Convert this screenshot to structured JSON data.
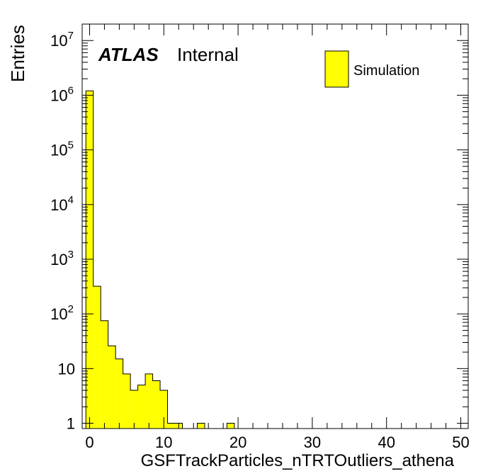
{
  "chart_data": {
    "type": "bar",
    "title": "",
    "xlabel": "GSFTrackParticles_nTRTOutliers_athena",
    "ylabel": "Entries",
    "x_range": [
      -1,
      51
    ],
    "y_range": [
      0.8,
      20000000
    ],
    "y_scale": "log",
    "bin_width": 1,
    "x_ticks": [
      0,
      10,
      20,
      30,
      40,
      50
    ],
    "x_tick_labels": [
      "0",
      "10",
      "20",
      "30",
      "40",
      "50"
    ],
    "y_ticks": [
      {
        "value": 1,
        "base": "1",
        "exp": ""
      },
      {
        "value": 10,
        "base": "10",
        "exp": ""
      },
      {
        "value": 100,
        "base": "10",
        "exp": "2"
      },
      {
        "value": 1000,
        "base": "10",
        "exp": "3"
      },
      {
        "value": 10000,
        "base": "10",
        "exp": "4"
      },
      {
        "value": 100000,
        "base": "10",
        "exp": "5"
      },
      {
        "value": 1000000,
        "base": "10",
        "exp": "6"
      },
      {
        "value": 10000000,
        "base": "10",
        "exp": "7"
      }
    ],
    "bins": [
      {
        "x": 0,
        "y": 1200000
      },
      {
        "x": 1,
        "y": 320
      },
      {
        "x": 2,
        "y": 75
      },
      {
        "x": 3,
        "y": 26
      },
      {
        "x": 4,
        "y": 15
      },
      {
        "x": 5,
        "y": 8
      },
      {
        "x": 6,
        "y": 4
      },
      {
        "x": 7,
        "y": 5
      },
      {
        "x": 8,
        "y": 8
      },
      {
        "x": 9,
        "y": 6
      },
      {
        "x": 10,
        "y": 4
      },
      {
        "x": 11,
        "y": 1
      },
      {
        "x": 12,
        "y": 1
      },
      {
        "x": 15,
        "y": 1
      },
      {
        "x": 19,
        "y": 1
      }
    ],
    "fill_color": "#ffff00",
    "line_color": "#000000",
    "grid": false,
    "legend": {
      "position": "top-right",
      "entries": [
        {
          "label": "Simulation",
          "color": "#ffff00"
        }
      ]
    },
    "annotation": {
      "bold": "ATLAS",
      "text": "Internal"
    }
  }
}
